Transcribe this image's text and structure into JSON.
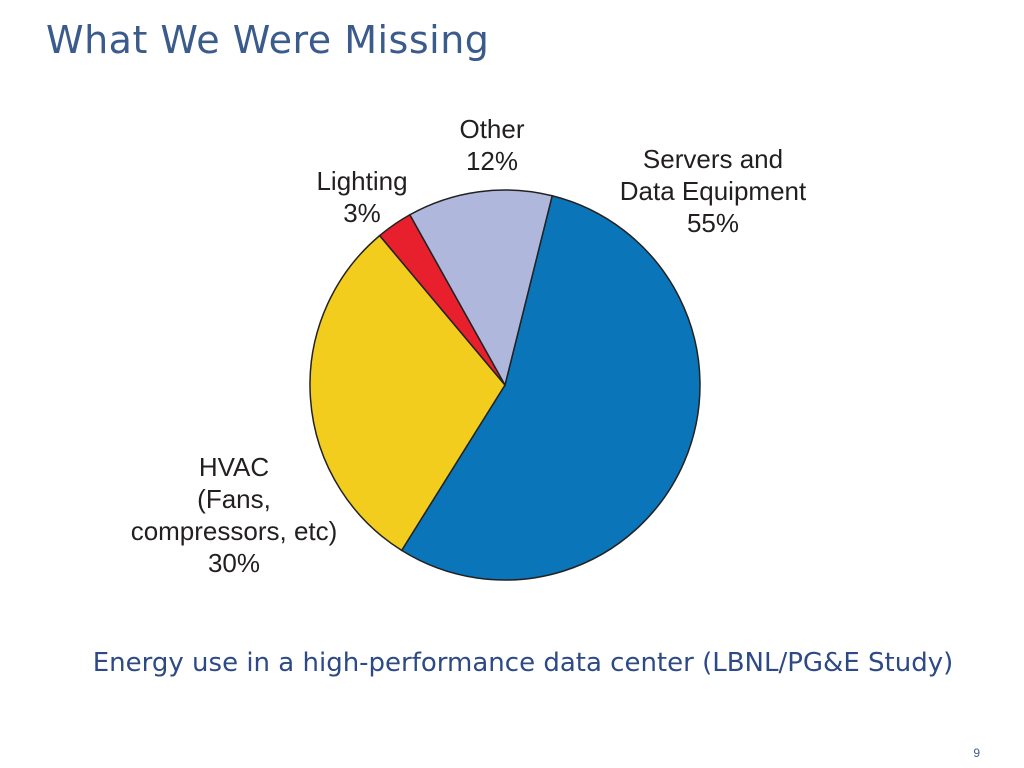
{
  "slide": {
    "title": "What We Were Missing",
    "caption": "Energy use in a high-performance data center (LBNL/PG&E Study)",
    "page_number": "9"
  },
  "chart_data": {
    "type": "pie",
    "title": "",
    "slices": [
      {
        "label_lines": [
          "Servers and",
          "Data Equipment"
        ],
        "percent_label": "55%",
        "value": 55,
        "color": "#0a75b9"
      },
      {
        "label_lines": [
          "HVAC",
          "(Fans,",
          "compressors, etc)"
        ],
        "percent_label": "30%",
        "value": 30,
        "color": "#f2cd1e"
      },
      {
        "label_lines": [
          "Lighting"
        ],
        "percent_label": "3%",
        "value": 3,
        "color": "#e8202e"
      },
      {
        "label_lines": [
          "Other"
        ],
        "percent_label": "12%",
        "value": 12,
        "color": "#b0b7dc"
      }
    ],
    "start_angle_deg": 14,
    "direction": "clockwise",
    "legend": "none"
  }
}
